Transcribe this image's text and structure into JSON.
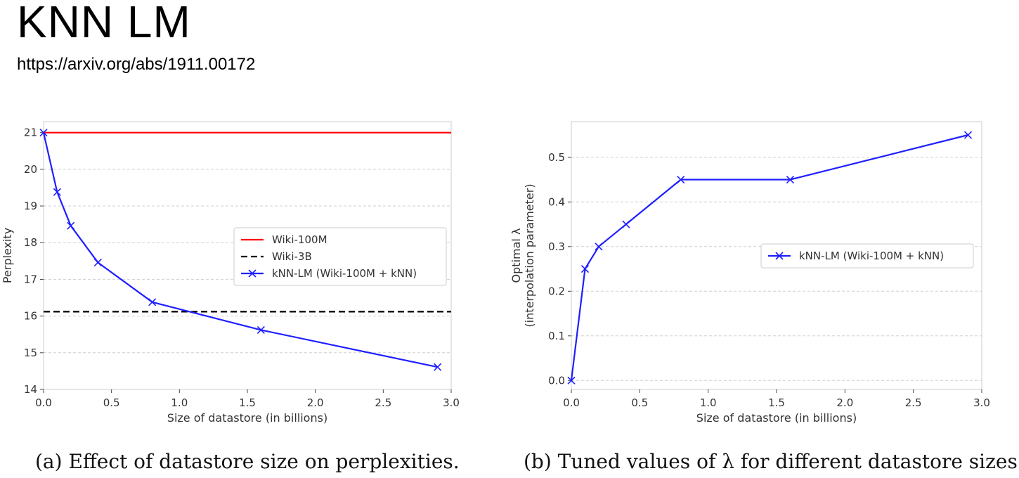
{
  "slide": {
    "title": "KNN LM",
    "link": "https://arxiv.org/abs/1911.00172"
  },
  "captions": {
    "a": "(a) Effect of datastore size on perplexities.",
    "b": "(b) Tuned values of λ for different datastore sizes."
  },
  "chart_data": [
    {
      "type": "line",
      "title": "",
      "xlabel": "Size of datastore (in billions)",
      "ylabel": "Perplexity",
      "xlim": [
        0.0,
        3.0
      ],
      "ylim": [
        14,
        21.3
      ],
      "xticks": [
        "0.0",
        "0.5",
        "1.0",
        "1.5",
        "2.0",
        "2.5",
        "3.0"
      ],
      "yticks": [
        "14",
        "15",
        "16",
        "17",
        "18",
        "19",
        "20",
        "21"
      ],
      "grid": "horizontal dashed",
      "legend_position": "center-right",
      "series": [
        {
          "name": "Wiki-100M",
          "color": "#ff0000",
          "style": "solid",
          "x": [
            0.0,
            3.0
          ],
          "y": [
            21.0,
            21.0
          ]
        },
        {
          "name": "Wiki-3B",
          "color": "#000000",
          "style": "dashed",
          "x": [
            0.0,
            3.0
          ],
          "y": [
            16.12,
            16.12
          ]
        },
        {
          "name": "kNN-LM (Wiki-100M + kNN)",
          "color": "#1f1fff",
          "style": "solid",
          "marker": "x",
          "x": [
            0.0,
            0.1,
            0.2,
            0.4,
            0.8,
            1.6,
            2.9
          ],
          "y": [
            21.0,
            19.38,
            18.46,
            17.46,
            16.38,
            15.62,
            14.61
          ]
        }
      ]
    },
    {
      "type": "line",
      "title": "",
      "xlabel": "Size of datastore (in billions)",
      "ylabel": "Optimal λ\n(interpolation parameter)",
      "ylabel_lines": [
        "Optimal λ",
        "(interpolation parameter)"
      ],
      "xlim": [
        0.0,
        3.0
      ],
      "ylim": [
        -0.02,
        0.58
      ],
      "xticks": [
        "0.0",
        "0.5",
        "1.0",
        "1.5",
        "2.0",
        "2.5",
        "3.0"
      ],
      "yticks": [
        "0.0",
        "0.1",
        "0.2",
        "0.3",
        "0.4",
        "0.5"
      ],
      "grid": "horizontal dashed",
      "legend_position": "center-right",
      "series": [
        {
          "name": "kNN-LM (Wiki-100M + kNN)",
          "color": "#1f1fff",
          "style": "solid",
          "marker": "x",
          "x": [
            0.0,
            0.1,
            0.2,
            0.4,
            0.8,
            1.6,
            2.9
          ],
          "y": [
            0.0,
            0.25,
            0.3,
            0.35,
            0.45,
            0.45,
            0.55
          ]
        }
      ]
    }
  ]
}
